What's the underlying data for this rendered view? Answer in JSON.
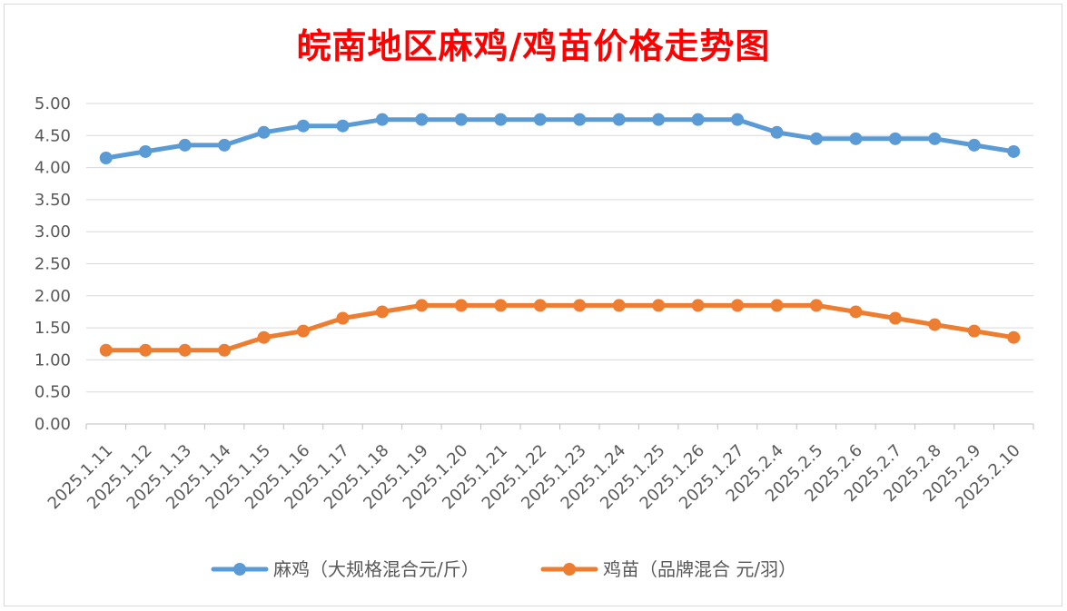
{
  "chart_data": {
    "type": "line",
    "title": "皖南地区麻鸡/鸡苗价格走势图",
    "categories": [
      "2025.1.11",
      "2025.1.12",
      "2025.1.13",
      "2025.1.14",
      "2025.1.15",
      "2025.1.16",
      "2025.1.17",
      "2025.1.18",
      "2025.1.19",
      "2025.1.20",
      "2025.1.21",
      "2025.1.22",
      "2025.1.23",
      "2025.1.24",
      "2025.1.25",
      "2025.1.26",
      "2025.1.27",
      "2025.2.4",
      "2025.2.5",
      "2025.2.6",
      "2025.2.7",
      "2025.2.8",
      "2025.2.9",
      "2025.2.10"
    ],
    "series": [
      {
        "name": "麻鸡（大规格混合元/斤）",
        "color": "#5b9bd5",
        "values": [
          4.15,
          4.25,
          4.35,
          4.35,
          4.55,
          4.65,
          4.65,
          4.75,
          4.75,
          4.75,
          4.75,
          4.75,
          4.75,
          4.75,
          4.75,
          4.75,
          4.75,
          4.55,
          4.45,
          4.45,
          4.45,
          4.45,
          4.35,
          4.25
        ]
      },
      {
        "name": "鸡苗（品牌混合 元/羽）",
        "color": "#ed7d31",
        "values": [
          1.15,
          1.15,
          1.15,
          1.15,
          1.35,
          1.45,
          1.65,
          1.75,
          1.85,
          1.85,
          1.85,
          1.85,
          1.85,
          1.85,
          1.85,
          1.85,
          1.85,
          1.85,
          1.85,
          1.75,
          1.65,
          1.55,
          1.45,
          1.35
        ]
      }
    ],
    "y_ticks": [
      "0.00",
      "0.50",
      "1.00",
      "1.50",
      "2.00",
      "2.50",
      "3.00",
      "3.50",
      "4.00",
      "4.50",
      "5.00"
    ],
    "ylim": [
      0,
      5
    ],
    "grid": true,
    "legend_position": "bottom"
  }
}
